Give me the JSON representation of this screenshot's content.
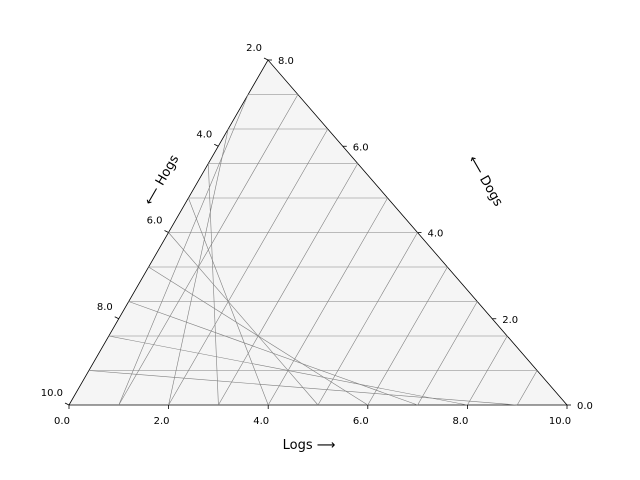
{
  "chart_data": {
    "type": "ternary",
    "title": "",
    "axes": {
      "bottom": {
        "label": "Logs",
        "arrow": "⟶",
        "ticks": [
          0.0,
          2.0,
          4.0,
          6.0,
          8.0,
          10.0
        ]
      },
      "left": {
        "label": "Hogs",
        "arrow": "⟵",
        "ticks": [
          2.0,
          4.0,
          6.0,
          8.0,
          10.0
        ]
      },
      "right": {
        "label": "Dogs",
        "arrow": "⟵",
        "ticks": [
          0.0,
          2.0,
          4.0,
          6.0,
          8.0
        ]
      }
    },
    "total": 10,
    "grid": true,
    "grid_step": 1,
    "series": [],
    "colors": {
      "background": "#f5f5f5",
      "grid": "#808080",
      "frame": "#000000"
    }
  }
}
